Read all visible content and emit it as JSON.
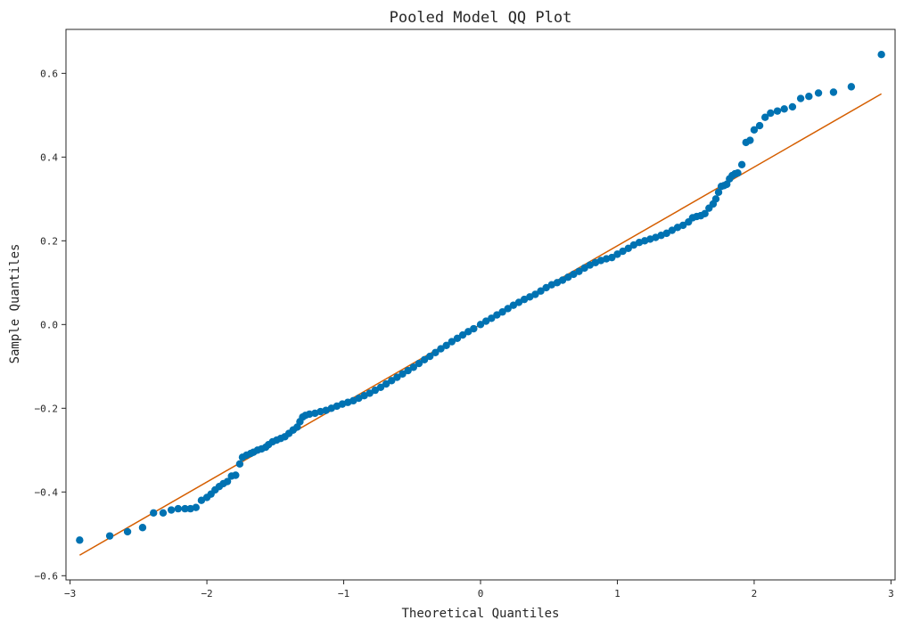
{
  "chart_data": {
    "type": "scatter",
    "title": "Pooled Model QQ Plot",
    "xlabel": "Theoretical Quantiles",
    "ylabel": "Sample Quantiles",
    "xlim": [
      -3.03,
      3.03
    ],
    "ylim": [
      -0.61,
      0.705
    ],
    "xticks": [
      -3,
      -2,
      -1,
      0,
      1,
      2,
      3
    ],
    "xtick_labels": [
      "−3",
      "−2",
      "−1",
      "0",
      "1",
      "2",
      "3"
    ],
    "yticks": [
      -0.6,
      -0.4,
      -0.2,
      0.0,
      0.2,
      0.4,
      0.6
    ],
    "ytick_labels": [
      "−0.6",
      "−0.4",
      "−0.2",
      "0.0",
      "0.2",
      "0.4",
      "0.6"
    ],
    "grid": false,
    "point_color": "#0072b2",
    "line_color": "#d55e00",
    "reference_line": {
      "x": [
        -2.93,
        2.93
      ],
      "y": [
        -0.551,
        0.551
      ]
    },
    "points": [
      [
        -2.93,
        -0.515
      ],
      [
        -2.71,
        -0.505
      ],
      [
        -2.58,
        -0.495
      ],
      [
        -2.47,
        -0.485
      ],
      [
        -2.39,
        -0.45
      ],
      [
        -2.32,
        -0.45
      ],
      [
        -2.26,
        -0.443
      ],
      [
        -2.21,
        -0.44
      ],
      [
        -2.16,
        -0.44
      ],
      [
        -2.12,
        -0.44
      ],
      [
        -2.08,
        -0.437
      ],
      [
        -2.04,
        -0.42
      ],
      [
        -2.0,
        -0.413
      ],
      [
        -1.97,
        -0.405
      ],
      [
        -1.94,
        -0.395
      ],
      [
        -1.91,
        -0.387
      ],
      [
        -1.88,
        -0.38
      ],
      [
        -1.85,
        -0.375
      ],
      [
        -1.82,
        -0.362
      ],
      [
        -1.79,
        -0.36
      ],
      [
        -1.76,
        -0.333
      ],
      [
        -1.74,
        -0.317
      ],
      [
        -1.71,
        -0.312
      ],
      [
        -1.68,
        -0.308
      ],
      [
        -1.66,
        -0.305
      ],
      [
        -1.63,
        -0.3
      ],
      [
        -1.6,
        -0.297
      ],
      [
        -1.57,
        -0.293
      ],
      [
        -1.55,
        -0.287
      ],
      [
        -1.52,
        -0.28
      ],
      [
        -1.49,
        -0.276
      ],
      [
        -1.46,
        -0.272
      ],
      [
        -1.43,
        -0.268
      ],
      [
        -1.4,
        -0.26
      ],
      [
        -1.37,
        -0.252
      ],
      [
        -1.34,
        -0.245
      ],
      [
        -1.32,
        -0.232
      ],
      [
        -1.3,
        -0.221
      ],
      [
        -1.28,
        -0.217
      ],
      [
        -1.25,
        -0.214
      ],
      [
        -1.21,
        -0.212
      ],
      [
        -1.17,
        -0.208
      ],
      [
        -1.13,
        -0.205
      ],
      [
        -1.09,
        -0.2
      ],
      [
        -1.05,
        -0.195
      ],
      [
        -1.01,
        -0.19
      ],
      [
        -0.97,
        -0.186
      ],
      [
        -0.93,
        -0.182
      ],
      [
        -0.89,
        -0.176
      ],
      [
        -0.85,
        -0.17
      ],
      [
        -0.81,
        -0.164
      ],
      [
        -0.77,
        -0.157
      ],
      [
        -0.73,
        -0.15
      ],
      [
        -0.69,
        -0.142
      ],
      [
        -0.65,
        -0.134
      ],
      [
        -0.61,
        -0.126
      ],
      [
        -0.57,
        -0.118
      ],
      [
        -0.53,
        -0.11
      ],
      [
        -0.49,
        -0.102
      ],
      [
        -0.45,
        -0.093
      ],
      [
        -0.41,
        -0.084
      ],
      [
        -0.37,
        -0.076
      ],
      [
        -0.33,
        -0.067
      ],
      [
        -0.29,
        -0.058
      ],
      [
        -0.25,
        -0.05
      ],
      [
        -0.21,
        -0.041
      ],
      [
        -0.17,
        -0.033
      ],
      [
        -0.13,
        -0.025
      ],
      [
        -0.09,
        -0.017
      ],
      [
        -0.05,
        -0.01
      ],
      [
        0.0,
        0.0
      ],
      [
        0.04,
        0.008
      ],
      [
        0.08,
        0.015
      ],
      [
        0.12,
        0.023
      ],
      [
        0.16,
        0.03
      ],
      [
        0.2,
        0.038
      ],
      [
        0.24,
        0.046
      ],
      [
        0.28,
        0.053
      ],
      [
        0.32,
        0.06
      ],
      [
        0.36,
        0.066
      ],
      [
        0.4,
        0.072
      ],
      [
        0.44,
        0.08
      ],
      [
        0.48,
        0.088
      ],
      [
        0.52,
        0.095
      ],
      [
        0.56,
        0.1
      ],
      [
        0.6,
        0.106
      ],
      [
        0.64,
        0.113
      ],
      [
        0.68,
        0.12
      ],
      [
        0.72,
        0.127
      ],
      [
        0.76,
        0.135
      ],
      [
        0.8,
        0.142
      ],
      [
        0.84,
        0.148
      ],
      [
        0.88,
        0.153
      ],
      [
        0.92,
        0.157
      ],
      [
        0.96,
        0.16
      ],
      [
        1.0,
        0.168
      ],
      [
        1.04,
        0.175
      ],
      [
        1.08,
        0.182
      ],
      [
        1.12,
        0.19
      ],
      [
        1.16,
        0.196
      ],
      [
        1.2,
        0.2
      ],
      [
        1.24,
        0.204
      ],
      [
        1.28,
        0.208
      ],
      [
        1.32,
        0.213
      ],
      [
        1.36,
        0.218
      ],
      [
        1.4,
        0.225
      ],
      [
        1.44,
        0.232
      ],
      [
        1.48,
        0.237
      ],
      [
        1.52,
        0.245
      ],
      [
        1.55,
        0.255
      ],
      [
        1.58,
        0.258
      ],
      [
        1.61,
        0.26
      ],
      [
        1.64,
        0.265
      ],
      [
        1.67,
        0.278
      ],
      [
        1.7,
        0.288
      ],
      [
        1.72,
        0.3
      ],
      [
        1.74,
        0.316
      ],
      [
        1.76,
        0.33
      ],
      [
        1.78,
        0.332
      ],
      [
        1.8,
        0.335
      ],
      [
        1.82,
        0.348
      ],
      [
        1.84,
        0.356
      ],
      [
        1.86,
        0.36
      ],
      [
        1.88,
        0.362
      ],
      [
        1.91,
        0.382
      ],
      [
        1.94,
        0.435
      ],
      [
        1.97,
        0.44
      ],
      [
        2.0,
        0.465
      ],
      [
        2.04,
        0.475
      ],
      [
        2.08,
        0.495
      ],
      [
        2.12,
        0.505
      ],
      [
        2.17,
        0.51
      ],
      [
        2.22,
        0.515
      ],
      [
        2.28,
        0.52
      ],
      [
        2.34,
        0.54
      ],
      [
        2.4,
        0.545
      ],
      [
        2.47,
        0.553
      ],
      [
        2.58,
        0.555
      ],
      [
        2.71,
        0.568
      ],
      [
        2.93,
        0.645
      ]
    ]
  }
}
